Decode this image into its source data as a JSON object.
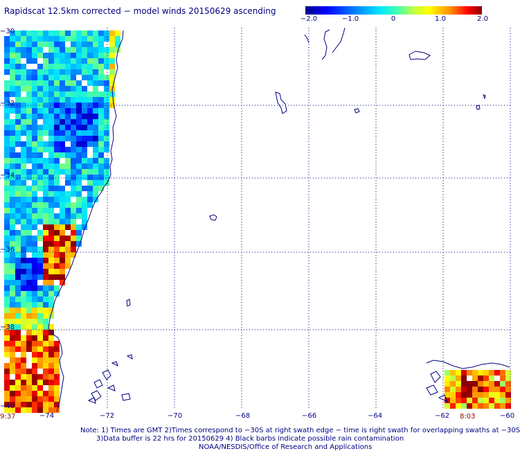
{
  "title": "Rapidscat 12.5km corrected − model winds 20150629 ascending",
  "colorbar": {
    "ticks": [
      "−2.0",
      "−1.0",
      "0",
      "1.0",
      "2.0"
    ],
    "values": [
      -2.0,
      -1.0,
      0,
      1.0,
      2.0
    ]
  },
  "axes": {
    "lat_labels": [
      "−30",
      "−32",
      "−34",
      "−36",
      "−38",
      "−40"
    ],
    "lat_values": [
      -30,
      -32,
      -34,
      -36,
      -38,
      -40
    ],
    "lon_labels": [
      "−74",
      "−72",
      "−70",
      "−68",
      "−66",
      "−64",
      "−62",
      "−60"
    ],
    "lon_values": [
      -74,
      -72,
      -70,
      -68,
      -66,
      -64,
      -62,
      -60
    ]
  },
  "times": {
    "left": "9:37",
    "right": "8:03"
  },
  "notes": {
    "line1": "Note: 1) Times are GMT 2)Times correspond to −30S at right swath edge − time is right swath for overlapping swaths at −30S",
    "line2": "3)Data buffer is 22 hrs for 20150629 4) Black barbs indicate possible rain contamination",
    "line3": "NOAA/NESDIS/Office of Research and Applications"
  },
  "colors": {
    "text": "#000080",
    "coast": "#000080",
    "grid": "#000080",
    "time": "#8b0000"
  }
}
